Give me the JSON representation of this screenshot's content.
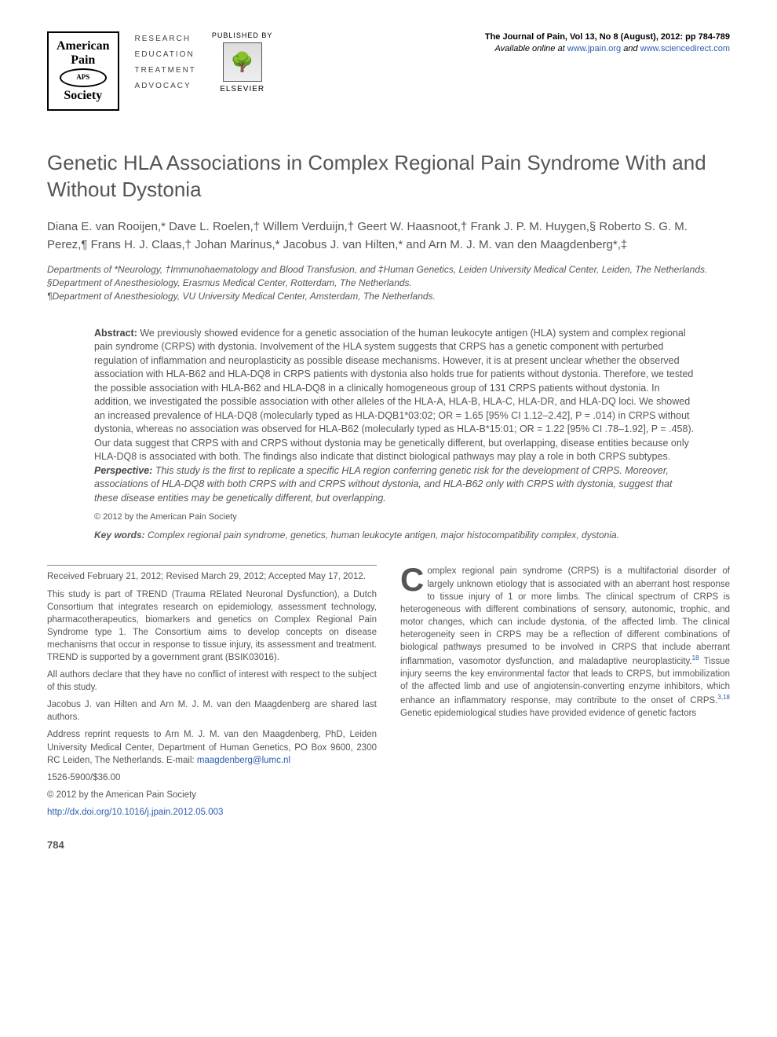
{
  "header": {
    "society": {
      "line1": "American",
      "line2": "Pain",
      "line3": "Society",
      "oval": "APS"
    },
    "reta": [
      "RESEARCH",
      "EDUCATION",
      "TREATMENT",
      "ADVOCACY"
    ],
    "publisher": {
      "pubby": "PUBLISHED BY",
      "name": "ELSEVIER",
      "tree_glyph": "🌳"
    },
    "journal_ref": {
      "line1": "The Journal of Pain, Vol 13, No 8 (August), 2012: pp 784-789",
      "line2_pre": "Available online at ",
      "link1": "www.jpain.org",
      "line2_mid": " and ",
      "link2": "www.sciencedirect.com"
    }
  },
  "title": "Genetic HLA Associations in Complex Regional Pain Syndrome With and Without Dystonia",
  "authors_html": "Diana E. van Rooijen,* Dave L. Roelen,† Willem Verduijn,† Geert W. Haasnoot,† Frank J. P. M. Huygen,§ Roberto S. G. M. Perez,¶ Frans H. J. Claas,† Johan Marinus,* Jacobus J. van Hilten,* and Arn M. J. M. van den Maagdenberg*,‡",
  "affiliations": [
    "Departments of *Neurology, †Immunohaematology and Blood Transfusion, and ‡Human Genetics, Leiden University Medical Center, Leiden, The Netherlands.",
    "§Department of Anesthesiology, Erasmus Medical Center, Rotterdam, The Netherlands.",
    "¶Department of Anesthesiology, VU University Medical Center, Amsterdam, The Netherlands."
  ],
  "abstract": {
    "label": "Abstract: ",
    "text": "We previously showed evidence for a genetic association of the human leukocyte antigen (HLA) system and complex regional pain syndrome (CRPS) with dystonia. Involvement of the HLA system suggests that CRPS has a genetic component with perturbed regulation of inflammation and neuroplasticity as possible disease mechanisms. However, it is at present unclear whether the observed association with HLA-B62 and HLA-DQ8 in CRPS patients with dystonia also holds true for patients without dystonia. Therefore, we tested the possible association with HLA-B62 and HLA-DQ8 in a clinically homogeneous group of 131 CRPS patients without dystonia. In addition, we investigated the possible association with other alleles of the HLA-A, HLA-B, HLA-C, HLA-DR, and HLA-DQ loci. We showed an increased prevalence of HLA-DQ8 (molecularly typed as HLA-DQB1*03:02; OR = 1.65 [95% CI 1.12–2.42], P = .014) in CRPS without dystonia, whereas no association was observed for HLA-B62 (molecularly typed as HLA-B*15:01; OR = 1.22 [95% CI .78–1.92], P = .458). Our data suggest that CRPS with and CRPS without dystonia may be genetically different, but overlapping, disease entities because only HLA-DQ8 is associated with both. The findings also indicate that distinct biological pathways may play a role in both CRPS subtypes.",
    "perspective_label": "Perspective: ",
    "perspective_text": "This study is the first to replicate a specific HLA region conferring genetic risk for the development of CRPS. Moreover, associations of HLA-DQ8 with both CRPS with and CRPS without dystonia, and HLA-B62 only with CRPS with dystonia, suggest that these disease entities may be genetically different, but overlapping.",
    "copyright": "© 2012 by the American Pain Society",
    "keywords_label": "Key words: ",
    "keywords": "Complex regional pain syndrome, genetics, human leukocyte antigen, major histocompatibility complex, dystonia."
  },
  "footnotes": {
    "received": "Received February 21, 2012; Revised March 29, 2012; Accepted May 17, 2012.",
    "trend": "This study is part of TREND (Trauma RElated Neuronal Dysfunction), a Dutch Consortium that integrates research on epidemiology, assessment technology, pharmacotherapeutics, biomarkers and genetics on Complex Regional Pain Syndrome type 1. The Consortium aims to develop concepts on disease mechanisms that occur in response to tissue injury, its assessment and treatment. TREND is supported by a government grant (BSIK03016).",
    "conflict": "All authors declare that they have no conflict of interest with respect to the subject of this study.",
    "shared": "Jacobus J. van Hilten and Arn M. J. M. van den Maagdenberg are shared last authors.",
    "reprint_pre": "Address reprint requests to Arn M. J. M. van den Maagdenberg, PhD, Leiden University Medical Center, Department of Human Genetics, PO Box 9600, 2300 RC Leiden, The Netherlands. E-mail: ",
    "reprint_email": "maagdenberg@lumc.nl",
    "issn": "1526-5900/$36.00",
    "copy": "© 2012 by the American Pain Society",
    "doi": "http://dx.doi.org/10.1016/j.jpain.2012.05.003"
  },
  "body": {
    "dropcap": "C",
    "para": "omplex regional pain syndrome (CRPS) is a multifactorial disorder of largely unknown etiology that is associated with an aberrant host response to tissue injury of 1 or more limbs. The clinical spectrum of CRPS is heterogeneous with different combinations of sensory, autonomic, trophic, and motor changes, which can include dystonia, of the affected limb. The clinical heterogeneity seen in CRPS may be a reflection of different combinations of biological pathways presumed to be involved in CRPS that include aberrant inflammation, vasomotor dysfunction, and maladaptive neuroplasticity.",
    "cite1": "18",
    "para2": " Tissue injury seems the key environmental factor that leads to CRPS, but immobilization of the affected limb and use of angiotensin-converting enzyme inhibitors, which enhance an inflammatory response, may contribute to the onset of CRPS.",
    "cite2": "3,18",
    "para3": " Genetic epidemiological studies have provided evidence of genetic factors"
  },
  "page_number": "784",
  "colors": {
    "link": "#2a5db0",
    "body_text": "#555555",
    "rule": "#888888"
  }
}
